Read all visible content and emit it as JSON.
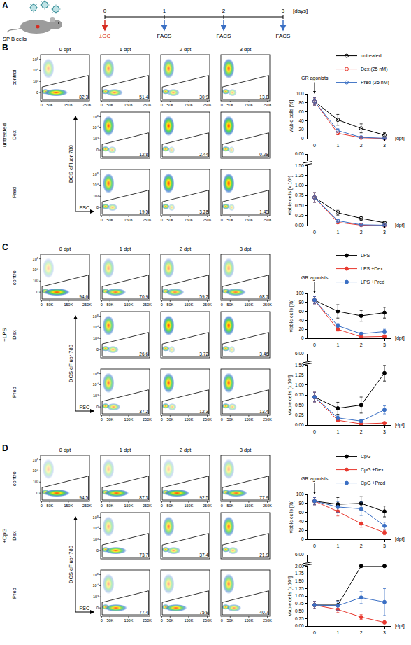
{
  "schematic": {
    "letter": "A",
    "cell_label": "SP B cells",
    "day_ticks": [
      0,
      1,
      2,
      3
    ],
    "unit": "[days]",
    "treatment": "±GC",
    "readout": "FACS"
  },
  "facs_axes": {
    "x_label": "FSC",
    "y_label": "DCS eFluor 780",
    "x_ticks": [
      "0",
      "50K",
      "150K",
      "250K"
    ],
    "y_ticks": [
      "0",
      "10³",
      "10⁴",
      "10⁵"
    ]
  },
  "panels": [
    {
      "letter": "B",
      "condition": "untreated",
      "columns": [
        "0 dpt",
        "1 dpt",
        "2 dpt",
        "3 dpt"
      ],
      "rows": [
        {
          "label": "control",
          "gates": [
            82.3,
            51.4,
            30.9,
            13.8
          ]
        },
        {
          "label": "Dex",
          "gates": [
            null,
            12.8,
            2.44,
            0.28
          ]
        },
        {
          "label": "Pred",
          "gates": [
            null,
            19.5,
            3.28,
            1.45
          ]
        }
      ]
    },
    {
      "letter": "C",
      "condition": "+LPS",
      "columns": [
        "0 dpt",
        "1 dpt",
        "2 dpt",
        "3 dpt"
      ],
      "rows": [
        {
          "label": "control",
          "gates": [
            94.6,
            70.9,
            59.2,
            68.7
          ]
        },
        {
          "label": "Dex",
          "gates": [
            null,
            26.6,
            3.72,
            3.46
          ]
        },
        {
          "label": "Pred",
          "gates": [
            null,
            37.2,
            12.3,
            13.4
          ]
        }
      ]
    },
    {
      "letter": "D",
      "condition": "+CpG",
      "columns": [
        "0 dpt",
        "1 dpt",
        "2 dpt",
        "3 dpt"
      ],
      "rows": [
        {
          "label": "control",
          "gates": [
            94.5,
            87.3,
            92.5,
            77.9
          ]
        },
        {
          "label": "Dex",
          "gates": [
            null,
            73.7,
            37.4,
            21.9
          ]
        },
        {
          "label": "Pred",
          "gates": [
            null,
            77.4,
            75.9,
            40.7
          ]
        }
      ]
    }
  ],
  "chart_data": [
    {
      "type": "line",
      "x": [
        0,
        1,
        2,
        3
      ],
      "xlim": [
        -0.3,
        3.3
      ],
      "xticks": [
        0,
        1,
        2,
        3
      ],
      "xlabel": "[dpt]",
      "ylabel": "viable cells [%]",
      "ylim": [
        0,
        100
      ],
      "yticks": [
        0,
        20,
        40,
        60,
        80,
        100
      ],
      "annotation": "GR agonists",
      "legend": "top",
      "series": [
        {
          "name": "untreated",
          "color": "#000000",
          "marker": "circle-open",
          "values": [
            83,
            42,
            23,
            8
          ],
          "errors": [
            8,
            12,
            10,
            5
          ]
        },
        {
          "name": "Dex (25 nM)",
          "color": "#e8392f",
          "marker": "circle-open",
          "values": [
            83,
            12,
            2,
            0.5
          ],
          "errors": [
            8,
            3,
            1,
            0.3
          ]
        },
        {
          "name": "Pred (25 nM)",
          "color": "#3a6fc4",
          "marker": "circle-open",
          "values": [
            83,
            18,
            3,
            1
          ],
          "errors": [
            8,
            4,
            1,
            0.5
          ]
        }
      ]
    },
    {
      "type": "line",
      "x": [
        0,
        1,
        2,
        3
      ],
      "xlim": [
        -0.3,
        3.3
      ],
      "xticks": [
        0,
        1,
        2,
        3
      ],
      "xlabel": "[dpt]",
      "ylabel": "viable cells [x 10⁶]",
      "ylim": [
        0,
        1.5
      ],
      "yticks": [
        {
          "value": 0,
          "label": "0.00"
        },
        {
          "value": 0.25,
          "label": "0.25"
        },
        {
          "value": 0.5,
          "label": "0.50"
        },
        {
          "value": 0.75,
          "label": "0.75"
        },
        {
          "value": 1,
          "label": "1.00"
        },
        {
          "value": 1.25,
          "label": "1.25"
        },
        {
          "value": 1.5,
          "label": "1.50"
        }
      ],
      "y2lim": [
        5.75,
        6
      ],
      "y2ticks": [
        {
          "value": 6,
          "label": "6.00"
        }
      ],
      "series": [
        {
          "color": "#000000",
          "marker": "circle-open",
          "values": [
            0.7,
            0.32,
            0.18,
            0.07
          ],
          "errors": [
            0.12,
            0.06,
            0.05,
            0.03
          ]
        },
        {
          "color": "#e8392f",
          "marker": "circle-open",
          "values": [
            0.7,
            0.08,
            0.01,
            0
          ],
          "errors": [
            0.12,
            0.03,
            0.01,
            0
          ]
        },
        {
          "color": "#3a6fc4",
          "marker": "circle-open",
          "values": [
            0.7,
            0.12,
            0.02,
            0.01
          ],
          "errors": [
            0.12,
            0.03,
            0.01,
            0.01
          ]
        }
      ]
    },
    {
      "type": "line",
      "x": [
        0,
        1,
        2,
        3
      ],
      "xlim": [
        -0.3,
        3.3
      ],
      "xticks": [
        0,
        1,
        2,
        3
      ],
      "xlabel": "[dpt]",
      "ylabel": "viable cells [%]",
      "ylim": [
        0,
        100
      ],
      "yticks": [
        0,
        20,
        40,
        60,
        80,
        100
      ],
      "annotation": "GR agonists",
      "legend": "top",
      "series": [
        {
          "name": "LPS",
          "color": "#000000",
          "marker": "circle",
          "values": [
            85,
            60,
            50,
            57
          ],
          "errors": [
            8,
            15,
            12,
            12
          ]
        },
        {
          "name": "LPS +Dex",
          "color": "#e8392f",
          "marker": "circle",
          "values": [
            85,
            20,
            3,
            4
          ],
          "errors": [
            8,
            4,
            1,
            2
          ]
        },
        {
          "name": "LPS +Pred",
          "color": "#3a6fc4",
          "marker": "circle",
          "values": [
            85,
            28,
            10,
            15
          ],
          "errors": [
            8,
            5,
            3,
            5
          ]
        }
      ]
    },
    {
      "type": "line",
      "x": [
        0,
        1,
        2,
        3
      ],
      "xlim": [
        -0.3,
        3.3
      ],
      "xticks": [
        0,
        1,
        2,
        3
      ],
      "xlabel": "[dpt]",
      "ylabel": "viable cells [x 10⁶]",
      "ylim": [
        0,
        1.5
      ],
      "yticks": [
        {
          "value": 0,
          "label": "0.00"
        },
        {
          "value": 0.25,
          "label": "0.25"
        },
        {
          "value": 0.5,
          "label": "0.50"
        },
        {
          "value": 0.75,
          "label": "0.75"
        },
        {
          "value": 1,
          "label": "1.00"
        },
        {
          "value": 1.25,
          "label": "1.25"
        },
        {
          "value": 1.5,
          "label": "1.50"
        }
      ],
      "y2lim": [
        5.75,
        6
      ],
      "y2ticks": [
        {
          "value": 6,
          "label": "6.00"
        }
      ],
      "series": [
        {
          "color": "#000000",
          "marker": "circle",
          "values": [
            0.7,
            0.42,
            0.5,
            1.3
          ],
          "errors": [
            0.12,
            0.15,
            0.2,
            0.2
          ]
        },
        {
          "color": "#e8392f",
          "marker": "circle",
          "values": [
            0.7,
            0.12,
            0.03,
            0.05
          ],
          "errors": [
            0.12,
            0.04,
            0.01,
            0.02
          ]
        },
        {
          "color": "#3a6fc4",
          "marker": "circle",
          "values": [
            0.7,
            0.18,
            0.1,
            0.38
          ],
          "errors": [
            0.12,
            0.05,
            0.04,
            0.1
          ]
        }
      ]
    },
    {
      "type": "line",
      "x": [
        0,
        1,
        2,
        3
      ],
      "xlim": [
        -0.3,
        3.3
      ],
      "xticks": [
        0,
        1,
        2,
        3
      ],
      "xlabel": "[dpt]",
      "ylabel": "viable cells [%]",
      "ylim": [
        0,
        100
      ],
      "yticks": [
        0,
        20,
        40,
        60,
        80,
        100
      ],
      "annotation": "GR agonists",
      "legend": "top",
      "series": [
        {
          "name": "CpG",
          "color": "#000000",
          "marker": "circle",
          "values": [
            85,
            78,
            80,
            62
          ],
          "errors": [
            8,
            15,
            15,
            12
          ]
        },
        {
          "name": "CpG +Dex",
          "color": "#e8392f",
          "marker": "circle",
          "values": [
            85,
            62,
            35,
            15
          ],
          "errors": [
            8,
            10,
            8,
            5
          ]
        },
        {
          "name": "CpG +Pred",
          "color": "#3a6fc4",
          "marker": "circle",
          "values": [
            85,
            72,
            68,
            30
          ],
          "errors": [
            8,
            12,
            15,
            8
          ]
        }
      ]
    },
    {
      "type": "line",
      "x": [
        0,
        1,
        2,
        3
      ],
      "xlim": [
        -0.3,
        3.3
      ],
      "xticks": [
        0,
        1,
        2,
        3
      ],
      "xlabel": "[dpt]",
      "ylabel": "viable cells [x 10⁶]",
      "ylim": [
        0,
        2
      ],
      "yticks": [
        {
          "value": 0,
          "label": "0.00"
        },
        {
          "value": 0.25,
          "label": "0.25"
        },
        {
          "value": 0.5,
          "label": "0.50"
        },
        {
          "value": 0.75,
          "label": "0.75"
        },
        {
          "value": 1,
          "label": "1.00"
        },
        {
          "value": 1.25,
          "label": "1.25"
        },
        {
          "value": 1.5,
          "label": "1.50"
        },
        {
          "value": 1.75,
          "label": "1.75"
        },
        {
          "value": 2,
          "label": "2.00"
        }
      ],
      "y2lim": [
        5.75,
        6
      ],
      "y2ticks": [
        {
          "value": 6,
          "label": "6.00"
        }
      ],
      "series": [
        {
          "color": "#000000",
          "marker": "circle",
          "values": [
            0.7,
            0.7,
            2,
            2
          ],
          "errors": [
            0.12,
            0.15,
            0,
            0
          ]
        },
        {
          "color": "#e8392f",
          "marker": "circle",
          "values": [
            0.7,
            0.55,
            0.3,
            0.12
          ],
          "errors": [
            0.12,
            0.1,
            0.08,
            0.04
          ]
        },
        {
          "color": "#3a6fc4",
          "marker": "circle",
          "values": [
            0.7,
            0.68,
            0.95,
            0.8
          ],
          "errors": [
            0.12,
            0.15,
            0.2,
            0.45
          ]
        }
      ]
    }
  ]
}
